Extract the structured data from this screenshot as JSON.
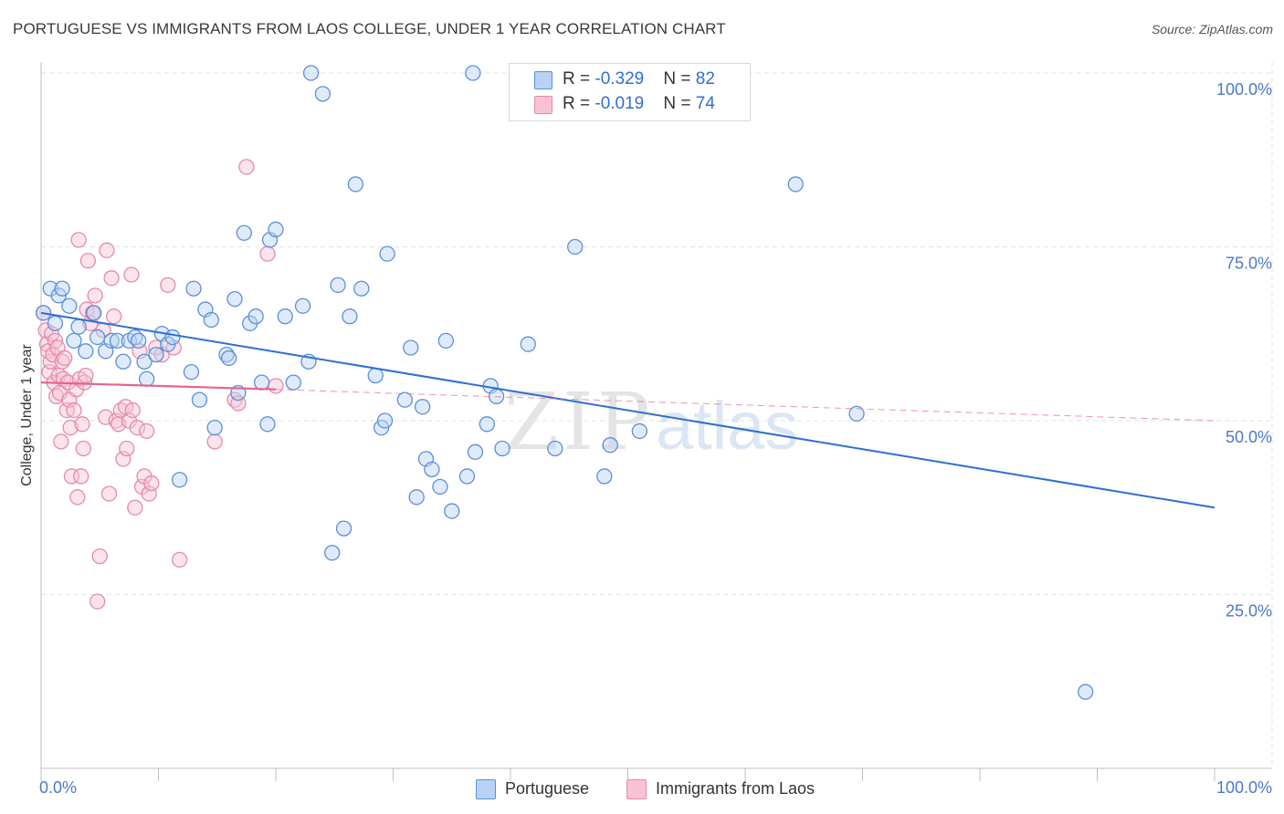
{
  "title": "PORTUGUESE VS IMMIGRANTS FROM LAOS COLLEGE, UNDER 1 YEAR CORRELATION CHART",
  "source": "Source: ZipAtlas.com",
  "watermark": {
    "zip": "ZIP",
    "atlas": "atlas"
  },
  "stats": {
    "blue": {
      "r_label": "R = ",
      "r_value": "-0.329",
      "n_label": "N = ",
      "n_value": "82"
    },
    "pink": {
      "r_label": "R = ",
      "r_value": "-0.019",
      "n_label": "N = ",
      "n_value": "74"
    }
  },
  "legend": {
    "blue_label": "Portuguese",
    "pink_label": "Immigrants from Laos"
  },
  "colors": {
    "blue_fill": "#b8d2f5",
    "blue_stroke": "#5b8fd8",
    "blue_line": "#2f6fd0",
    "pink_fill": "#f7c3d4",
    "pink_stroke": "#e58aab",
    "pink_line": "#e8628e",
    "tick": "#4a78c8",
    "grid": "#e2e2e2"
  },
  "chart_data": {
    "type": "scatter",
    "title": "PORTUGUESE VS IMMIGRANTS FROM LAOS COLLEGE, UNDER 1 YEAR CORRELATION CHART",
    "xlabel": "",
    "ylabel": "College, Under 1 year",
    "xlim": [
      0,
      100
    ],
    "ylim": [
      0,
      102
    ],
    "x_tick_labels": [
      "0.0%",
      "100.0%"
    ],
    "y_ticks": [
      25,
      50,
      75,
      100
    ],
    "y_tick_labels": [
      "25.0%",
      "50.0%",
      "75.0%",
      "100.0%"
    ],
    "grid": true,
    "legend_position": "bottom-center",
    "series": [
      {
        "name": "Portuguese",
        "r": -0.329,
        "n": 82,
        "trend": {
          "x": [
            0,
            100
          ],
          "y": [
            65.5,
            37.5
          ]
        },
        "points": [
          [
            0.2,
            65.5
          ],
          [
            0.8,
            69
          ],
          [
            1.2,
            64
          ],
          [
            1.5,
            68
          ],
          [
            1.8,
            69
          ],
          [
            2.4,
            66.5
          ],
          [
            2.8,
            61.5
          ],
          [
            3.2,
            63.5
          ],
          [
            3.8,
            60
          ],
          [
            4.5,
            65.5
          ],
          [
            4.8,
            62
          ],
          [
            5.5,
            60
          ],
          [
            6.0,
            61.5
          ],
          [
            6.5,
            61.5
          ],
          [
            7.0,
            58.5
          ],
          [
            7.5,
            61.5
          ],
          [
            8.0,
            62
          ],
          [
            8.3,
            61.5
          ],
          [
            8.8,
            58.5
          ],
          [
            9.0,
            56
          ],
          [
            9.8,
            59.5
          ],
          [
            10.3,
            62.5
          ],
          [
            10.8,
            61
          ],
          [
            11.2,
            62
          ],
          [
            11.8,
            41.5
          ],
          [
            12.8,
            57
          ],
          [
            13.0,
            69
          ],
          [
            13.5,
            53
          ],
          [
            14.0,
            66
          ],
          [
            14.5,
            64.5
          ],
          [
            14.8,
            49
          ],
          [
            15.8,
            59.5
          ],
          [
            16.0,
            59
          ],
          [
            16.5,
            67.5
          ],
          [
            16.8,
            54
          ],
          [
            17.3,
            77
          ],
          [
            17.8,
            64
          ],
          [
            18.3,
            65
          ],
          [
            18.8,
            55.5
          ],
          [
            19.3,
            49.5
          ],
          [
            19.5,
            76
          ],
          [
            20.0,
            77.5
          ],
          [
            20.8,
            65
          ],
          [
            21.5,
            55.5
          ],
          [
            22.3,
            66.5
          ],
          [
            22.8,
            58.5
          ],
          [
            23.0,
            100
          ],
          [
            24.0,
            97
          ],
          [
            24.8,
            31
          ],
          [
            25.3,
            69.5
          ],
          [
            25.8,
            34.5
          ],
          [
            26.3,
            65
          ],
          [
            26.8,
            84
          ],
          [
            27.3,
            69
          ],
          [
            28.5,
            56.5
          ],
          [
            29.0,
            49
          ],
          [
            29.3,
            50
          ],
          [
            29.5,
            74
          ],
          [
            31.0,
            53
          ],
          [
            31.5,
            60.5
          ],
          [
            32.0,
            39
          ],
          [
            32.5,
            52
          ],
          [
            32.8,
            44.5
          ],
          [
            33.3,
            43
          ],
          [
            34.0,
            40.5
          ],
          [
            34.5,
            61.5
          ],
          [
            35.0,
            37
          ],
          [
            36.3,
            42
          ],
          [
            36.8,
            100
          ],
          [
            37.0,
            45.5
          ],
          [
            38.0,
            49.5
          ],
          [
            38.3,
            55
          ],
          [
            38.8,
            53.5
          ],
          [
            39.3,
            46
          ],
          [
            41.5,
            61
          ],
          [
            43.8,
            46
          ],
          [
            45.5,
            75
          ],
          [
            48.0,
            42
          ],
          [
            48.5,
            46.5
          ],
          [
            51.0,
            48.5
          ],
          [
            64.3,
            84
          ],
          [
            69.5,
            51
          ],
          [
            89.0,
            11
          ]
        ]
      },
      {
        "name": "Immigrants from Laos",
        "r": -0.019,
        "n": 74,
        "trend": {
          "x": [
            0,
            20
          ],
          "y": [
            55.5,
            54.5
          ]
        },
        "trend_dashed": {
          "x": [
            20,
            100
          ],
          "y": [
            54.5,
            50
          ]
        },
        "points": [
          [
            0.2,
            65.5
          ],
          [
            0.4,
            63
          ],
          [
            0.5,
            61
          ],
          [
            0.6,
            60
          ],
          [
            0.7,
            57
          ],
          [
            0.8,
            58.5
          ],
          [
            0.9,
            62.5
          ],
          [
            1.0,
            59.5
          ],
          [
            1.1,
            55.5
          ],
          [
            1.2,
            61.5
          ],
          [
            1.3,
            53.5
          ],
          [
            1.4,
            60.5
          ],
          [
            1.5,
            56.5
          ],
          [
            1.6,
            54
          ],
          [
            1.7,
            47
          ],
          [
            1.8,
            58.5
          ],
          [
            1.9,
            56
          ],
          [
            2.0,
            59
          ],
          [
            2.2,
            51.5
          ],
          [
            2.3,
            55.5
          ],
          [
            2.4,
            53
          ],
          [
            2.5,
            49
          ],
          [
            2.6,
            42
          ],
          [
            2.8,
            51.5
          ],
          [
            3.0,
            54.5
          ],
          [
            3.1,
            39
          ],
          [
            3.2,
            76
          ],
          [
            3.3,
            56
          ],
          [
            3.4,
            42
          ],
          [
            3.5,
            49.5
          ],
          [
            3.6,
            46
          ],
          [
            3.7,
            55.5
          ],
          [
            3.8,
            56.5
          ],
          [
            3.9,
            66
          ],
          [
            4.0,
            73
          ],
          [
            4.2,
            64
          ],
          [
            4.4,
            65.5
          ],
          [
            4.6,
            68
          ],
          [
            4.8,
            24
          ],
          [
            5.0,
            30.5
          ],
          [
            5.3,
            63
          ],
          [
            5.5,
            50.5
          ],
          [
            5.6,
            74.5
          ],
          [
            5.8,
            39.5
          ],
          [
            6.0,
            70.5
          ],
          [
            6.2,
            65
          ],
          [
            6.4,
            50
          ],
          [
            6.6,
            49.5
          ],
          [
            6.8,
            51.5
          ],
          [
            7.0,
            44.5
          ],
          [
            7.2,
            52
          ],
          [
            7.3,
            46
          ],
          [
            7.5,
            50
          ],
          [
            7.7,
            71
          ],
          [
            7.8,
            51.5
          ],
          [
            8.0,
            37.5
          ],
          [
            8.2,
            49
          ],
          [
            8.4,
            60
          ],
          [
            8.6,
            40.5
          ],
          [
            8.8,
            42
          ],
          [
            9.0,
            48.5
          ],
          [
            9.2,
            39.5
          ],
          [
            9.4,
            41
          ],
          [
            9.8,
            60.5
          ],
          [
            10.3,
            59.5
          ],
          [
            10.8,
            69.5
          ],
          [
            11.3,
            60.5
          ],
          [
            11.8,
            30
          ],
          [
            14.8,
            47
          ],
          [
            16.5,
            53
          ],
          [
            16.8,
            52.5
          ],
          [
            17.5,
            86.5
          ],
          [
            19.3,
            74
          ],
          [
            20.0,
            55
          ]
        ]
      }
    ]
  }
}
